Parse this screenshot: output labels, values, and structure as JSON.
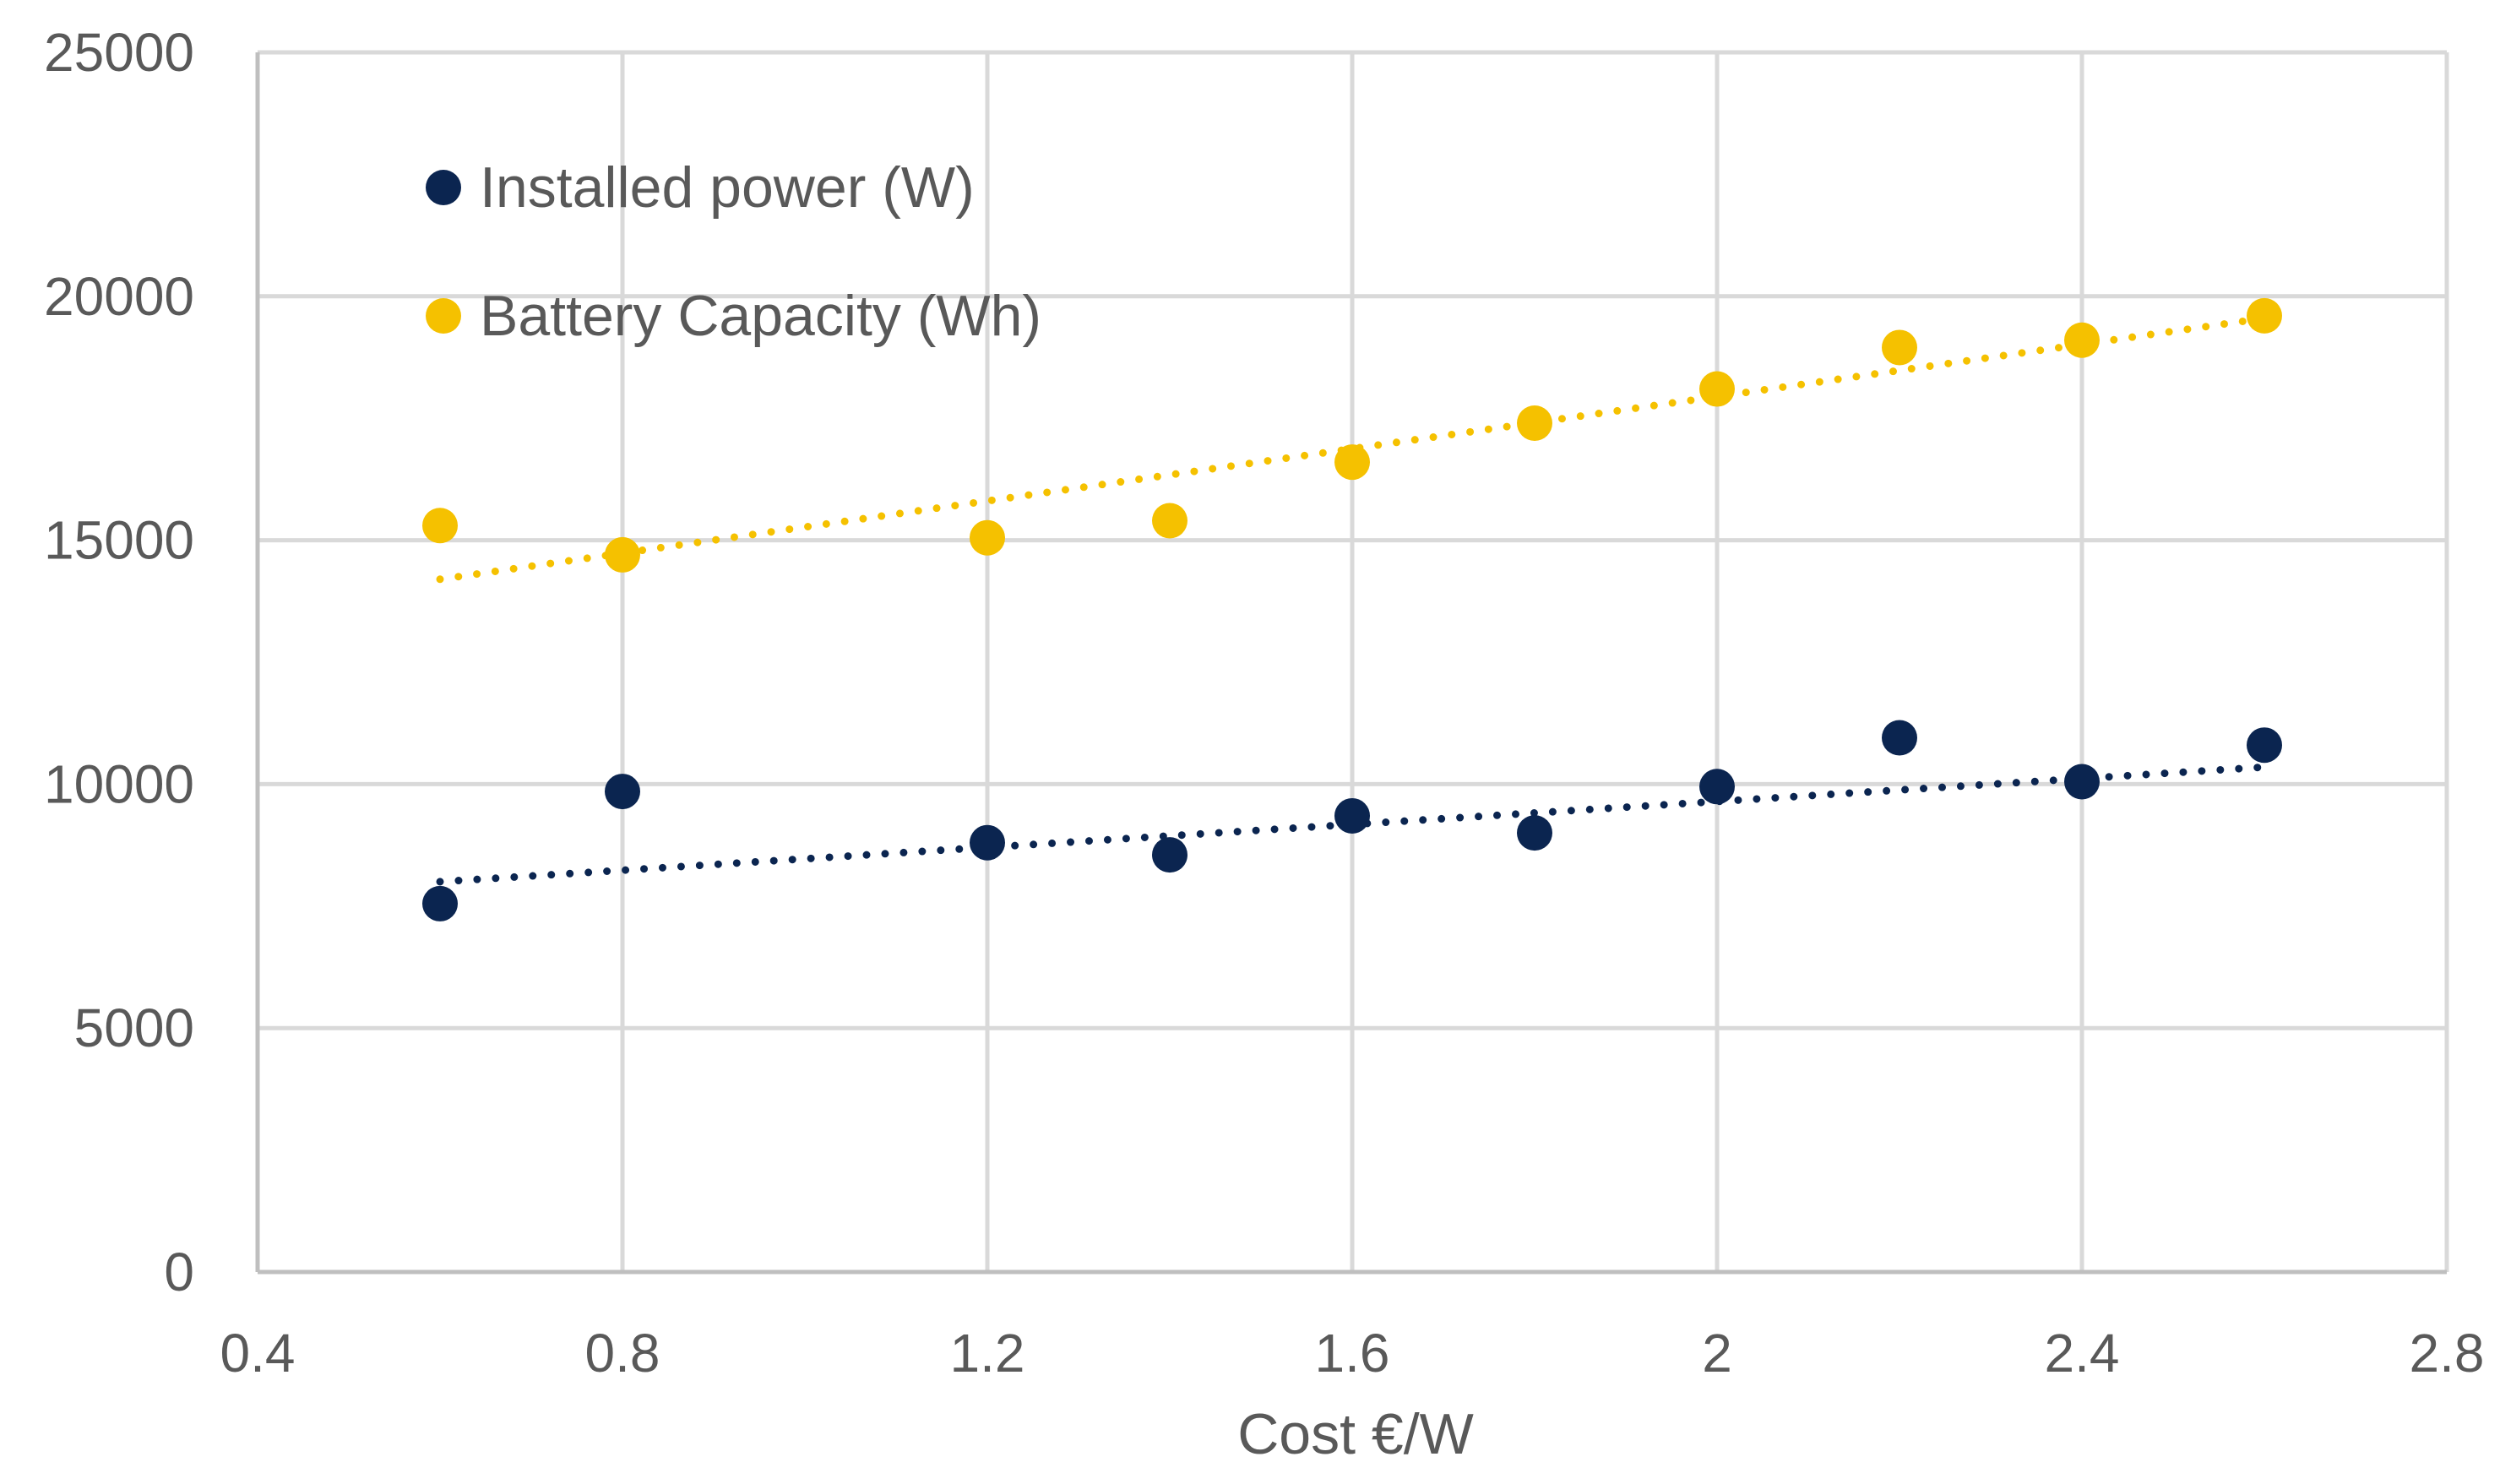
{
  "chart_data": {
    "type": "scatter",
    "title": "",
    "xlabel": "Cost €/W",
    "ylabel": "",
    "xlim": [
      0.4,
      2.8
    ],
    "ylim": [
      0,
      25000
    ],
    "grid": true,
    "legend_position": "top-left",
    "x_ticks": [
      0.4,
      0.8,
      1.2,
      1.6,
      2,
      2.4,
      2.8
    ],
    "x_tick_labels": [
      "0.4",
      "0.8",
      "1.2",
      "1.6",
      "2",
      "2.4",
      "2.8"
    ],
    "y_ticks": [
      0,
      5000,
      10000,
      15000,
      20000,
      25000
    ],
    "y_tick_labels": [
      "0",
      "5000",
      "10000",
      "15000",
      "20000",
      "25000"
    ],
    "series": [
      {
        "name": "Installed power (W)",
        "color": "#0b2550",
        "x": [
          0.6,
          0.8,
          1.2,
          1.4,
          1.6,
          1.8,
          2.0,
          2.2,
          2.4,
          2.6
        ],
        "y": [
          7550,
          9850,
          8800,
          8550,
          9350,
          9000,
          9950,
          10950,
          10050,
          10800
        ],
        "trendline": {
          "type": "linear",
          "x": [
            0.6,
            2.6
          ],
          "y": [
            8000,
            10350
          ]
        }
      },
      {
        "name": "Battery Capacity (Wh)",
        "color": "#f5c100",
        "x": [
          0.6,
          0.8,
          1.2,
          1.4,
          1.6,
          1.8,
          2.0,
          2.2,
          2.4,
          2.6
        ],
        "y": [
          15300,
          14700,
          15050,
          15400,
          16600,
          17400,
          18100,
          18950,
          19100,
          19600
        ],
        "trendline": {
          "type": "linear",
          "x": [
            0.6,
            2.6
          ],
          "y": [
            14200,
            19550
          ]
        }
      }
    ]
  },
  "axes": {
    "x_title": "Cost €/W"
  },
  "legend": {
    "items": [
      {
        "label": "Installed power (W)",
        "color": "#0b2550"
      },
      {
        "label": "Battery Capacity (Wh)",
        "color": "#f5c100"
      }
    ]
  },
  "colors": {
    "grid": "#d9d9d9",
    "axis": "#bfbfbf",
    "text": "#595959"
  }
}
